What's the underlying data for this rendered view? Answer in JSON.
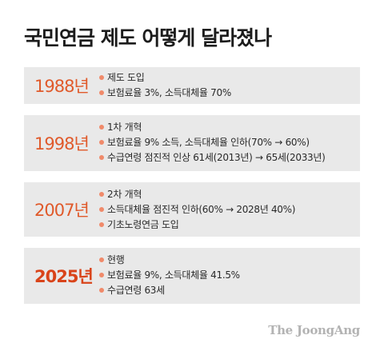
{
  "title": "국민연금 제도 어떻게 달라졌나",
  "periods": [
    {
      "year": "1988년",
      "items": [
        "제도 도입",
        "보험료율 3%, 소득대체율 70%"
      ]
    },
    {
      "year": "1998년",
      "items": [
        "1차 개혁",
        "보험료율 9% 소득, 소득대체율 인하(70% → 60%)",
        "수급연령 점진적 인상 61세(2013년) → 65세(2033년)"
      ]
    },
    {
      "year": "2007년",
      "items": [
        "2차 개혁",
        "소득대체율 점진적 인하(60% → 2028년 40%)",
        "기초노령연금 도입"
      ]
    },
    {
      "year": "2025년",
      "items": [
        "현행",
        "보험료율 9%, 소득대체율 41.5%",
        "수급연령 63세"
      ]
    }
  ],
  "logo": "The JoongAng",
  "colors": {
    "card_bg": "#e9e9e9",
    "year": "#e05a2b",
    "bullet": "#f08a6a"
  }
}
